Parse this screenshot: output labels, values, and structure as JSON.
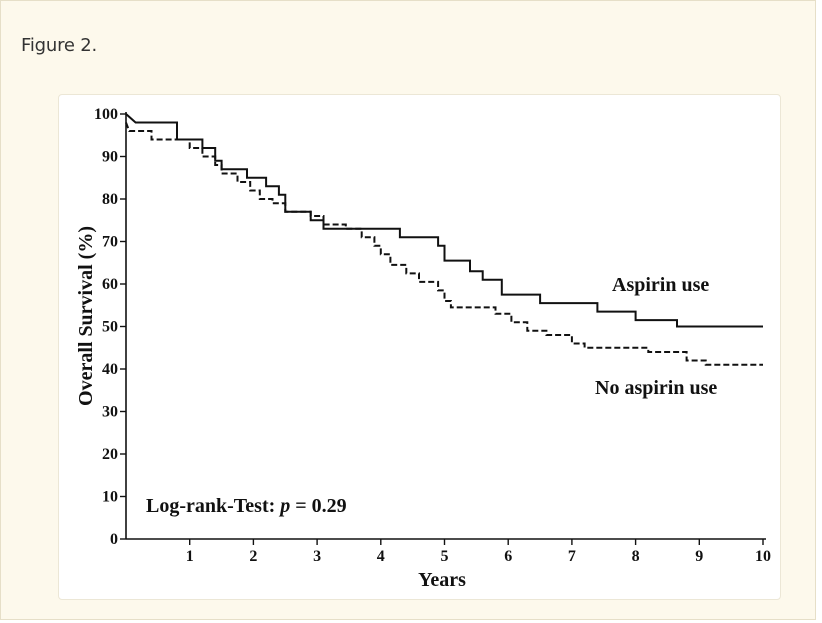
{
  "figure": {
    "caption": "Figure 2."
  },
  "chart_data": {
    "type": "line",
    "chart_kind": "kaplan-meier step plot",
    "title": "",
    "xlabel": "Years",
    "ylabel": "Overall Survival (%)",
    "xlim": [
      0,
      10
    ],
    "ylim": [
      0,
      100
    ],
    "x_ticks": [
      1,
      2,
      3,
      4,
      5,
      6,
      7,
      8,
      9,
      10
    ],
    "y_ticks": [
      0,
      10,
      20,
      30,
      40,
      50,
      60,
      70,
      80,
      90,
      100
    ],
    "grid": false,
    "annotation": {
      "prefix": "Log-rank-Test: ",
      "p_symbol": "p",
      "suffix": " = 0.29"
    },
    "series": [
      {
        "name": "Aspirin use",
        "line_style": "solid",
        "color": "#111111",
        "points": [
          [
            0,
            100
          ],
          [
            0.15,
            98
          ],
          [
            0.8,
            98
          ],
          [
            0.8,
            94
          ],
          [
            1.2,
            94
          ],
          [
            1.2,
            92
          ],
          [
            1.4,
            92
          ],
          [
            1.4,
            89
          ],
          [
            1.5,
            89
          ],
          [
            1.5,
            87
          ],
          [
            1.9,
            87
          ],
          [
            1.9,
            85
          ],
          [
            2.2,
            85
          ],
          [
            2.2,
            83
          ],
          [
            2.4,
            83
          ],
          [
            2.4,
            81
          ],
          [
            2.5,
            81
          ],
          [
            2.5,
            77
          ],
          [
            2.9,
            77
          ],
          [
            2.9,
            75
          ],
          [
            3.1,
            75
          ],
          [
            3.1,
            73
          ],
          [
            4.3,
            73
          ],
          [
            4.3,
            71
          ],
          [
            4.9,
            71
          ],
          [
            4.9,
            69
          ],
          [
            5.0,
            69
          ],
          [
            5.0,
            65.5
          ],
          [
            5.4,
            65.5
          ],
          [
            5.4,
            63
          ],
          [
            5.6,
            63
          ],
          [
            5.6,
            61
          ],
          [
            5.9,
            61
          ],
          [
            5.9,
            57.5
          ],
          [
            6.5,
            57.5
          ],
          [
            6.5,
            55.5
          ],
          [
            7.4,
            55.5
          ],
          [
            7.4,
            53.5
          ],
          [
            8.0,
            53.5
          ],
          [
            8.0,
            51.5
          ],
          [
            8.65,
            51.5
          ],
          [
            8.65,
            50
          ],
          [
            10,
            50
          ]
        ]
      },
      {
        "name": "No aspirin use",
        "line_style": "dashed",
        "color": "#111111",
        "points": [
          [
            0,
            98
          ],
          [
            0.05,
            96
          ],
          [
            0.4,
            96
          ],
          [
            0.4,
            94
          ],
          [
            1.0,
            94
          ],
          [
            1.0,
            92
          ],
          [
            1.2,
            92
          ],
          [
            1.2,
            90
          ],
          [
            1.4,
            90
          ],
          [
            1.4,
            88
          ],
          [
            1.5,
            88
          ],
          [
            1.5,
            86
          ],
          [
            1.75,
            86
          ],
          [
            1.75,
            84
          ],
          [
            1.95,
            84
          ],
          [
            1.95,
            82
          ],
          [
            2.1,
            82
          ],
          [
            2.1,
            80
          ],
          [
            2.3,
            80
          ],
          [
            2.3,
            79
          ],
          [
            2.5,
            79
          ],
          [
            2.5,
            77
          ],
          [
            2.9,
            77
          ],
          [
            2.9,
            76
          ],
          [
            3.1,
            76
          ],
          [
            3.1,
            74
          ],
          [
            3.45,
            74
          ],
          [
            3.45,
            73
          ],
          [
            3.7,
            73
          ],
          [
            3.7,
            71
          ],
          [
            3.9,
            71
          ],
          [
            3.9,
            69
          ],
          [
            4.0,
            69
          ],
          [
            4.0,
            67
          ],
          [
            4.15,
            67
          ],
          [
            4.15,
            64.5
          ],
          [
            4.4,
            64.5
          ],
          [
            4.4,
            62.5
          ],
          [
            4.6,
            62.5
          ],
          [
            4.6,
            60.5
          ],
          [
            4.9,
            60.5
          ],
          [
            4.9,
            58.5
          ],
          [
            5.0,
            58.5
          ],
          [
            5.0,
            56
          ],
          [
            5.1,
            56
          ],
          [
            5.1,
            54.5
          ],
          [
            5.8,
            54.5
          ],
          [
            5.8,
            53
          ],
          [
            6.05,
            53
          ],
          [
            6.05,
            51
          ],
          [
            6.3,
            51
          ],
          [
            6.3,
            49
          ],
          [
            6.6,
            49
          ],
          [
            6.6,
            48
          ],
          [
            7.0,
            48
          ],
          [
            7.0,
            46
          ],
          [
            7.2,
            46
          ],
          [
            7.2,
            45
          ],
          [
            8.2,
            45
          ],
          [
            8.2,
            44
          ],
          [
            8.8,
            44
          ],
          [
            8.8,
            42
          ],
          [
            9.1,
            42
          ],
          [
            9.1,
            41
          ],
          [
            10,
            41
          ]
        ]
      }
    ]
  }
}
